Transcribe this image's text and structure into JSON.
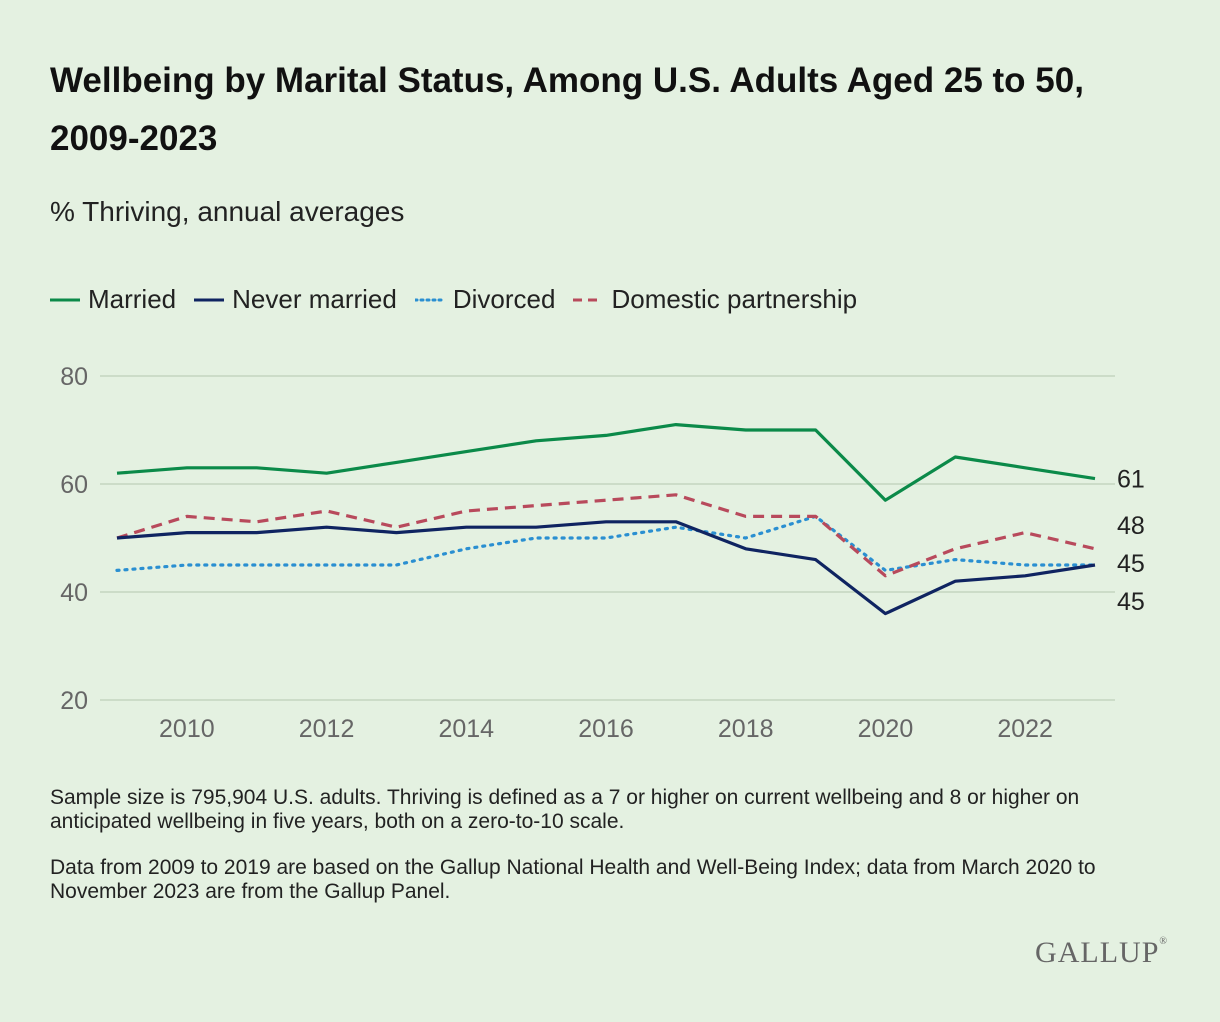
{
  "chart_data": {
    "type": "line",
    "title": "Wellbeing by Marital Status, Among U.S. Adults Aged 25 to 50, 2009-2023",
    "subtitle": "% Thriving, annual averages",
    "xlabel": "",
    "ylabel": "",
    "x": [
      2009,
      2010,
      2011,
      2012,
      2013,
      2014,
      2015,
      2016,
      2017,
      2018,
      2019,
      2020,
      2021,
      2022,
      2023
    ],
    "x_ticks": [
      "2010",
      "2012",
      "2014",
      "2016",
      "2018",
      "2020",
      "2022"
    ],
    "y_ticks": [
      "20",
      "40",
      "60",
      "80"
    ],
    "ylim": [
      20,
      80
    ],
    "xlim": [
      2009,
      2023
    ],
    "grid": true,
    "legend_position": "top-left",
    "series": [
      {
        "name": "Married",
        "color": "#0b8a49",
        "style": "solid",
        "values": [
          62,
          63,
          63,
          62,
          64,
          66,
          68,
          69,
          71,
          70,
          70,
          57,
          65,
          63,
          61
        ],
        "end_label": "61"
      },
      {
        "name": "Never married",
        "color": "#0f2461",
        "style": "solid",
        "values": [
          50,
          51,
          51,
          52,
          51,
          52,
          52,
          53,
          53,
          48,
          46,
          36,
          42,
          43,
          45
        ],
        "end_label": "45"
      },
      {
        "name": "Divorced",
        "color": "#2a8fd1",
        "style": "dotted",
        "values": [
          44,
          45,
          45,
          45,
          45,
          48,
          50,
          50,
          52,
          50,
          54,
          44,
          46,
          45,
          45
        ],
        "end_label": "45"
      },
      {
        "name": "Domestic partnership",
        "color": "#b84a5c",
        "style": "dashed",
        "values": [
          50,
          54,
          53,
          55,
          52,
          55,
          56,
          57,
          58,
          54,
          54,
          43,
          48,
          51,
          48
        ],
        "end_label": "48"
      }
    ]
  },
  "notes": {
    "sample": "Sample size is 795,904 U.S. adults. Thriving is defined as a 7 or higher on current wellbeing and 8 or higher on anticipated wellbeing in five years, both on a zero-to-10 scale.",
    "source": "Data from 2009 to 2019 are based on the Gallup National Health and Well-Being Index; data from March 2020 to November 2023 are from the Gallup Panel."
  },
  "brand": {
    "logo_text": "GALLUP",
    "logo_mark": "®"
  }
}
